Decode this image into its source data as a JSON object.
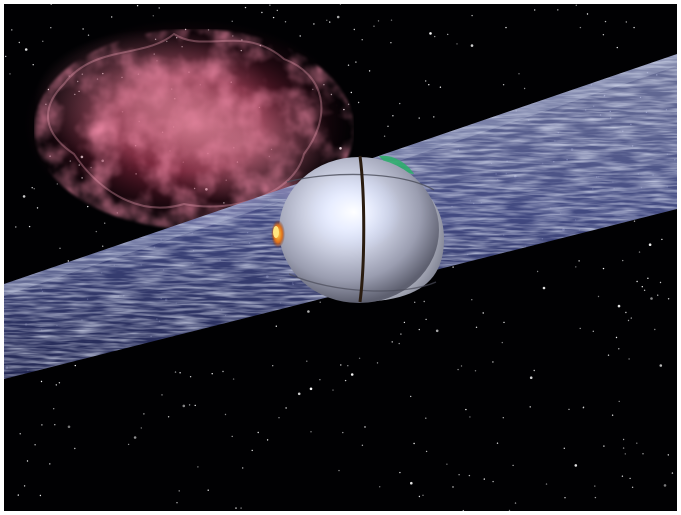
{
  "scene": {
    "description_visible_text": "",
    "subject": "white-sphere-spacecraft",
    "colors": {
      "space": "#010103",
      "nebula": "#b8405a",
      "nebula_glow": "#e07a8e",
      "beam": "#6f78b8",
      "beam_light": "#c9d2f0",
      "sphere_core": "#f4f6ff",
      "sphere_edge": "#7c7f92",
      "seam": "#2a1c10",
      "accent_green": "#2fae6e",
      "accent_orange": "#e07a1c"
    }
  }
}
